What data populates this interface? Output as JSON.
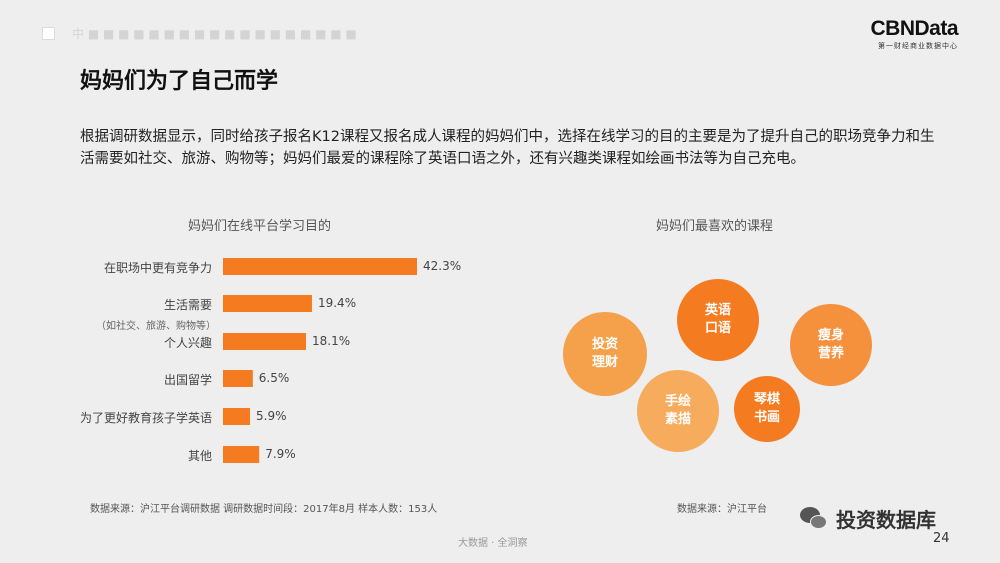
{
  "header": {
    "logo_main": "CBNData",
    "logo_sub": "第一财经商业数据中心"
  },
  "title": "妈妈们为了自己而学",
  "intro": "根据调研数据显示，同时给孩子报名K12课程又报名成人课程的妈妈们中，选择在线学习的目的主要是为了提升自己的职场竞争力和生活需要如社交、旅游、购物等；妈妈们最爱的课程除了英语口语之外，还有兴趣类课程如绘画书法等为自己充电。",
  "chart_data": [
    {
      "type": "bar",
      "orientation": "horizontal",
      "title": "妈妈们在线平台学习目的",
      "categories": [
        "在职场中更有竞争力",
        "生活需要",
        "个人兴趣",
        "出国留学",
        "为了更好教育孩子学英语",
        "其他"
      ],
      "category_notes": [
        "",
        "（如社交、旅游、购物等）",
        "",
        "",
        "",
        ""
      ],
      "values": [
        42.3,
        19.4,
        18.1,
        6.5,
        5.9,
        7.9
      ],
      "value_labels": [
        "42.3%",
        "19.4%",
        "18.1%",
        "6.5%",
        "5.9%",
        "7.9%"
      ],
      "bar_color": "#f47b20",
      "source": "数据来源：沪江平台调研数据   调研数据时间段：2017年8月  样本人数：153人"
    },
    {
      "type": "bubble",
      "title": "妈妈们最喜欢的课程",
      "items": [
        {
          "lines": [
            "投资",
            "理财"
          ],
          "color": "#f5a04a"
        },
        {
          "lines": [
            "英语",
            "口语"
          ],
          "color": "#f47b20"
        },
        {
          "lines": [
            "手绘",
            "素描"
          ],
          "color": "#f6ac5c"
        },
        {
          "lines": [
            "琴棋",
            "书画"
          ],
          "color": "#f47b20"
        },
        {
          "lines": [
            "瘦身",
            "营养"
          ],
          "color": "#f5903c"
        }
      ],
      "source": "数据来源：沪江平台"
    }
  ],
  "footer": {
    "wechat_name": "投资数据库",
    "center": "大数据 · 全洞察",
    "page_number": "24"
  }
}
